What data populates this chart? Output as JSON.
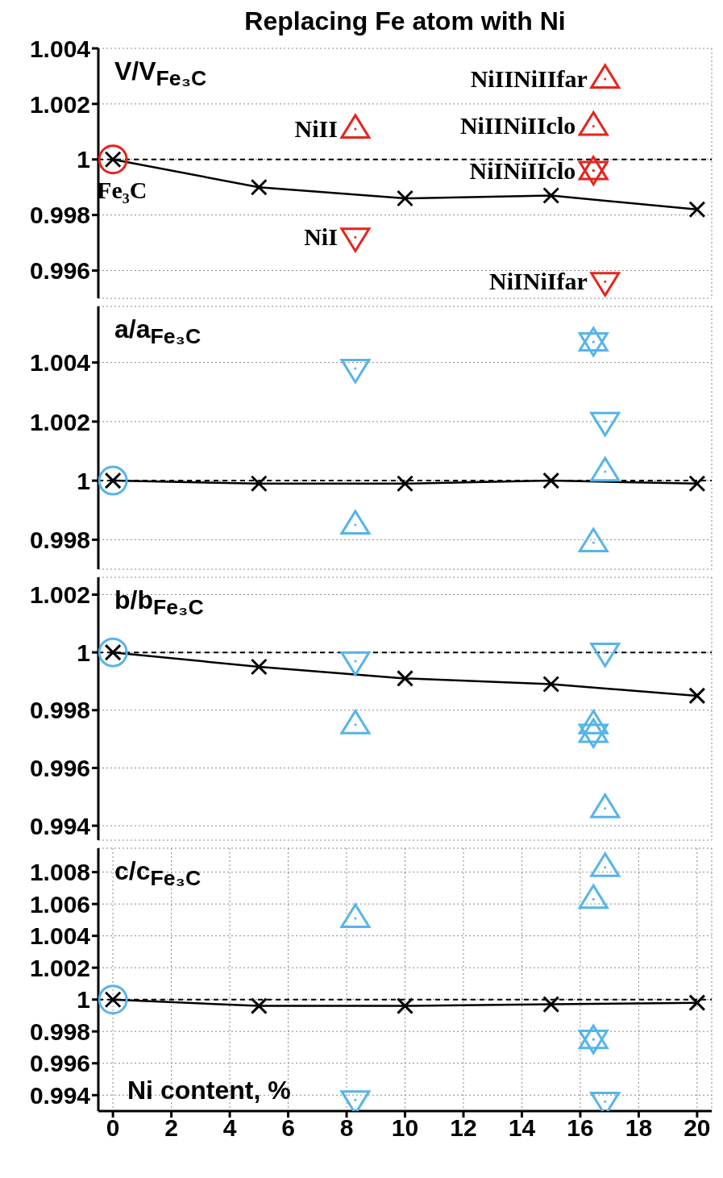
{
  "chart_data": [
    {
      "type": "line",
      "title": "Replacing Fe atom with Ni",
      "ylabel": "V/V$_{Fe₃C}$",
      "xlim": [
        -0.5,
        20.5
      ],
      "xticks": [
        0,
        2,
        4,
        6,
        8,
        10,
        12,
        14,
        16,
        18,
        20
      ],
      "ylim": [
        0.995,
        1.004
      ],
      "yticks": [
        0.996,
        0.998,
        1,
        1.002,
        1.004
      ],
      "grid": true,
      "tick_labels": "y",
      "ref_lines": [
        {
          "axis": "y",
          "value": 1,
          "line_style": "dashed",
          "color": "#000000"
        }
      ],
      "series": [
        {
          "color": "#000000",
          "marker": "cross",
          "line_style": "solid",
          "x": [
            0,
            5,
            10,
            15,
            20
          ],
          "values": [
            1,
            0.999,
            0.9986,
            0.9987,
            0.9982
          ]
        },
        {
          "type": "scatter",
          "name": "Fe₃C",
          "color": "#e8231c",
          "marker": "circle",
          "x": [
            0
          ],
          "values": [
            1
          ]
        },
        {
          "type": "scatter",
          "name": "NiI",
          "color": "#e8231c",
          "marker": "triangle-down",
          "x": [
            8.3
          ],
          "values": [
            0.9972
          ]
        },
        {
          "type": "scatter",
          "name": "NiII",
          "color": "#e8231c",
          "marker": "triangle",
          "x": [
            8.3
          ],
          "values": [
            1.0011
          ]
        },
        {
          "type": "scatter",
          "name": "NiINiIIclo",
          "color": "#e8231c",
          "marker": "triangle-down",
          "x": [
            16.45
          ],
          "values": [
            0.9996
          ]
        },
        {
          "type": "scatter",
          "color": "#e8231c",
          "marker": "triangle",
          "x": [
            16.45
          ],
          "values": [
            0.9996
          ]
        },
        {
          "type": "scatter",
          "name": "NiIINiIIclo",
          "color": "#e8231c",
          "marker": "triangle",
          "x": [
            16.45
          ],
          "values": [
            1.0012
          ]
        },
        {
          "type": "scatter",
          "name": "NiINiIfar",
          "color": "#e8231c",
          "marker": "triangle-down",
          "x": [
            16.85
          ],
          "values": [
            0.9956
          ]
        },
        {
          "type": "scatter",
          "name": "NiIINiIIfar",
          "color": "#e8231c",
          "marker": "triangle",
          "x": [
            16.85
          ],
          "values": [
            1.0029
          ]
        }
      ]
    },
    {
      "type": "line",
      "ylabel": "a/a$_{Fe₃C}$",
      "xlim": [
        -0.5,
        20.5
      ],
      "xticks": [
        0,
        2,
        4,
        6,
        8,
        10,
        12,
        14,
        16,
        18,
        20
      ],
      "ylim": [
        0.997,
        1.0059
      ],
      "yticks": [
        0.998,
        1,
        1.002,
        1.004
      ],
      "grid": true,
      "tick_labels": "y",
      "ref_lines": [
        {
          "axis": "y",
          "value": 1,
          "line_style": "dashed",
          "color": "#000000"
        }
      ],
      "series": [
        {
          "color": "#000000",
          "marker": "cross",
          "line_style": "solid",
          "x": [
            0,
            5,
            10,
            15,
            20
          ],
          "values": [
            1,
            0.9999,
            0.9999,
            1.0,
            0.9999
          ]
        },
        {
          "type": "scatter",
          "color": "#56b4e9",
          "marker": "circle",
          "x": [
            0
          ],
          "values": [
            1
          ]
        },
        {
          "type": "scatter",
          "color": "#56b4e9",
          "marker": "triangle-down",
          "x": [
            8.3
          ],
          "values": [
            1.0038
          ]
        },
        {
          "type": "scatter",
          "color": "#56b4e9",
          "marker": "triangle",
          "x": [
            8.3
          ],
          "values": [
            0.9985
          ]
        },
        {
          "type": "scatter",
          "color": "#56b4e9",
          "marker": "triangle-down",
          "x": [
            16.45
          ],
          "values": [
            1.0047
          ]
        },
        {
          "type": "scatter",
          "color": "#56b4e9",
          "marker": "triangle",
          "x": [
            16.45
          ],
          "values": [
            1.0047
          ]
        },
        {
          "type": "scatter",
          "color": "#56b4e9",
          "marker": "triangle",
          "x": [
            16.45
          ],
          "values": [
            0.9979
          ]
        },
        {
          "type": "scatter",
          "color": "#56b4e9",
          "marker": "triangle-down",
          "x": [
            16.85
          ],
          "values": [
            1.002
          ]
        },
        {
          "type": "scatter",
          "color": "#56b4e9",
          "marker": "triangle",
          "x": [
            16.85
          ],
          "values": [
            1.0003
          ]
        }
      ]
    },
    {
      "type": "line",
      "ylabel": "b/b$_{Fe₃C}$",
      "xlim": [
        -0.5,
        20.5
      ],
      "xticks": [
        0,
        2,
        4,
        6,
        8,
        10,
        12,
        14,
        16,
        18,
        20
      ],
      "ylim": [
        0.9935,
        1.0026
      ],
      "yticks": [
        0.994,
        0.996,
        0.998,
        1,
        1.002
      ],
      "grid": true,
      "tick_labels": "y",
      "ref_lines": [
        {
          "axis": "y",
          "value": 1,
          "line_style": "dashed",
          "color": "#000000"
        }
      ],
      "series": [
        {
          "color": "#000000",
          "marker": "cross",
          "line_style": "solid",
          "x": [
            0,
            5,
            10,
            15,
            20
          ],
          "values": [
            1,
            0.9995,
            0.9991,
            0.9989,
            0.9985
          ]
        },
        {
          "type": "scatter",
          "color": "#56b4e9",
          "marker": "circle",
          "x": [
            0
          ],
          "values": [
            1
          ]
        },
        {
          "type": "scatter",
          "color": "#56b4e9",
          "marker": "triangle-down",
          "x": [
            8.3
          ],
          "values": [
            0.9997
          ]
        },
        {
          "type": "scatter",
          "color": "#56b4e9",
          "marker": "triangle",
          "x": [
            8.3
          ],
          "values": [
            0.9975
          ]
        },
        {
          "type": "scatter",
          "color": "#56b4e9",
          "marker": "triangle-down",
          "x": [
            16.45
          ],
          "values": [
            0.9972
          ]
        },
        {
          "type": "scatter",
          "color": "#56b4e9",
          "marker": "triangle",
          "x": [
            16.45
          ],
          "values": [
            0.9972
          ]
        },
        {
          "type": "scatter",
          "color": "#56b4e9",
          "marker": "triangle",
          "x": [
            16.45
          ],
          "values": [
            0.9975
          ]
        },
        {
          "type": "scatter",
          "color": "#56b4e9",
          "marker": "triangle-down",
          "x": [
            16.85
          ],
          "values": [
            1.0
          ]
        },
        {
          "type": "scatter",
          "color": "#56b4e9",
          "marker": "triangle",
          "x": [
            16.85
          ],
          "values": [
            0.9946
          ]
        }
      ]
    },
    {
      "type": "line",
      "ylabel": "c/c$_{Fe₃C}$",
      "xlabel": "Ni content, %",
      "xlim": [
        -0.5,
        20.5
      ],
      "xticks": [
        0,
        2,
        4,
        6,
        8,
        10,
        12,
        14,
        16,
        18,
        20
      ],
      "ylim": [
        0.993,
        1.0095
      ],
      "yticks": [
        0.994,
        0.996,
        0.998,
        1,
        1.002,
        1.004,
        1.006,
        1.008
      ],
      "grid": true,
      "ref_lines": [
        {
          "axis": "y",
          "value": 1,
          "line_style": "dashed",
          "color": "#000000"
        }
      ],
      "series": [
        {
          "color": "#000000",
          "marker": "cross",
          "line_style": "solid",
          "x": [
            0,
            5,
            10,
            15,
            20
          ],
          "values": [
            1,
            0.9996,
            0.9996,
            0.9997,
            0.9998
          ]
        },
        {
          "type": "scatter",
          "color": "#56b4e9",
          "marker": "circle",
          "x": [
            0
          ],
          "values": [
            1
          ]
        },
        {
          "type": "scatter",
          "color": "#56b4e9",
          "marker": "triangle-down",
          "x": [
            8.3
          ],
          "values": [
            0.9937
          ]
        },
        {
          "type": "scatter",
          "color": "#56b4e9",
          "marker": "triangle",
          "x": [
            8.3
          ],
          "values": [
            1.0051
          ]
        },
        {
          "type": "scatter",
          "color": "#56b4e9",
          "marker": "triangle-down",
          "x": [
            16.45
          ],
          "values": [
            0.9975
          ]
        },
        {
          "type": "scatter",
          "color": "#56b4e9",
          "marker": "triangle",
          "x": [
            16.45
          ],
          "values": [
            0.9975
          ]
        },
        {
          "type": "scatter",
          "color": "#56b4e9",
          "marker": "triangle",
          "x": [
            16.45
          ],
          "values": [
            1.0063
          ]
        },
        {
          "type": "scatter",
          "color": "#56b4e9",
          "marker": "triangle-down",
          "x": [
            16.85
          ],
          "values": [
            0.9936
          ]
        },
        {
          "type": "scatter",
          "color": "#56b4e9",
          "marker": "triangle",
          "x": [
            16.85
          ],
          "values": [
            1.0083
          ]
        }
      ]
    }
  ]
}
